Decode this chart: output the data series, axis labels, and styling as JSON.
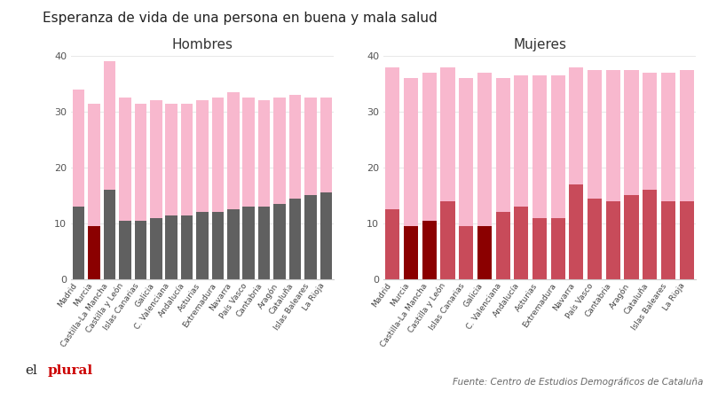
{
  "title": "Esperanza de vida de una persona en buena y mala salud",
  "subtitle_left": "Hombres",
  "subtitle_right": "Mujeres",
  "source": "Fuente: Centro de Estudios Demográficos de Cataluña",
  "categories": [
    "Madrid",
    "Murcia",
    "Castilla-La Mancha",
    "Castilla y León",
    "Islas Canarias",
    "Galicia",
    "C. Valenciana",
    "Andalucía",
    "Asturias",
    "Extremadura",
    "Navarra",
    "País Vasco",
    "Cantabria",
    "Aragón",
    "Cataluña",
    "Islas Baleares",
    "La Rioja"
  ],
  "hombres_bad": [
    13,
    9.5,
    16,
    10.5,
    10.5,
    11,
    11.5,
    11.5,
    12,
    12,
    12.5,
    13,
    13,
    13.5,
    14.5,
    15,
    15.5
  ],
  "hombres_total": [
    34,
    31.5,
    39,
    32.5,
    31.5,
    32,
    31.5,
    31.5,
    32,
    32.5,
    33.5,
    32.5,
    32,
    32.5,
    33,
    32.5,
    32.5
  ],
  "mujeres_bad": [
    12.5,
    9.5,
    10.5,
    14,
    9.5,
    9.5,
    12,
    13,
    11,
    11,
    17,
    14.5,
    14,
    15,
    16,
    14,
    14
  ],
  "mujeres_total": [
    38,
    36,
    37,
    38,
    36,
    37,
    36,
    36.5,
    36.5,
    36.5,
    38,
    37.5,
    37.5,
    37.5,
    37,
    37,
    37.5
  ],
  "color_hombres_murcia": "#8B0000",
  "color_hombres_normal": "#606060",
  "color_hombres_good": "#F8B8CE",
  "color_mujeres_dark": "#8B0000",
  "color_mujeres_normal": "#C84B5A",
  "color_mujeres_good": "#F8B8CE",
  "hombres_dark_indices": [
    1
  ],
  "mujeres_dark_indices": [
    1,
    2,
    5
  ],
  "ylim": [
    0,
    40
  ],
  "yticks": [
    0,
    10,
    20,
    30,
    40
  ],
  "background_color": "#ffffff",
  "grid_color": "#e8e8e8",
  "title_fontsize": 11,
  "subtitle_fontsize": 11,
  "tick_fontsize": 6.5,
  "ytick_fontsize": 8
}
